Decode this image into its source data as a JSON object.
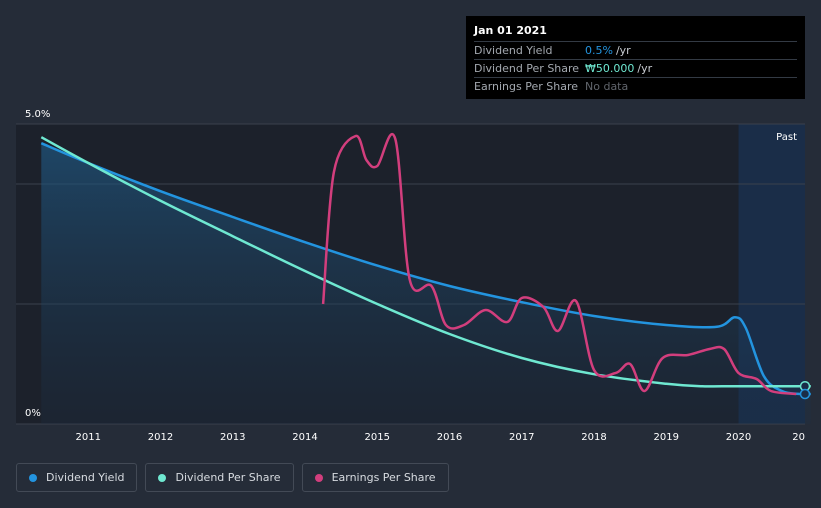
{
  "chart_data": {
    "type": "line",
    "y_axis": {
      "min": 0,
      "max": 5.0,
      "top_label": "5.0%",
      "bottom_label": "0%"
    },
    "x_axis": {
      "start": 2010.35,
      "end": 2021.0,
      "tick_labels": [
        "2011",
        "2012",
        "2013",
        "2014",
        "2015",
        "2016",
        "2017",
        "2018",
        "2019",
        "2020",
        "20"
      ]
    },
    "past_label": "Past",
    "past_start": 2020.0,
    "colors": {
      "dividend_yield": "#2394df",
      "dividend_per_share": "#6fe8d1",
      "eps": "#d23e7d",
      "eps_low": "#ed5a5a",
      "background": "#252c38",
      "plot_past": "#1a2d48"
    },
    "series": [
      {
        "name": "Dividend Yield",
        "color": "#2394df",
        "points": [
          [
            2010.35,
            4.68
          ],
          [
            2011,
            4.35
          ],
          [
            2012,
            3.88
          ],
          [
            2013,
            3.45
          ],
          [
            2014,
            3.03
          ],
          [
            2015,
            2.64
          ],
          [
            2016,
            2.3
          ],
          [
            2017,
            2.03
          ],
          [
            2018,
            1.8
          ],
          [
            2019,
            1.65
          ],
          [
            2019.7,
            1.62
          ],
          [
            2019.95,
            1.78
          ],
          [
            2020.1,
            1.6
          ],
          [
            2020.35,
            0.8
          ],
          [
            2020.6,
            0.55
          ],
          [
            2020.85,
            0.5
          ],
          [
            2021,
            0.5
          ]
        ]
      },
      {
        "name": "Dividend Per Share",
        "color": "#6fe8d1",
        "points": [
          [
            2010.35,
            4.78
          ],
          [
            2011,
            4.35
          ],
          [
            2012,
            3.72
          ],
          [
            2013,
            3.13
          ],
          [
            2014,
            2.55
          ],
          [
            2015,
            2.0
          ],
          [
            2016,
            1.5
          ],
          [
            2017,
            1.1
          ],
          [
            2018,
            0.83
          ],
          [
            2019,
            0.67
          ],
          [
            2019.5,
            0.63
          ],
          [
            2020,
            0.63
          ],
          [
            2021,
            0.63
          ]
        ]
      },
      {
        "name": "Earnings Per Share",
        "color": "#d23e7d",
        "points": [
          [
            2014.25,
            2.0
          ],
          [
            2014.4,
            4.2
          ],
          [
            2014.7,
            4.8
          ],
          [
            2014.85,
            4.4
          ],
          [
            2015.0,
            4.3
          ],
          [
            2015.25,
            4.75
          ],
          [
            2015.45,
            2.4
          ],
          [
            2015.75,
            2.3
          ],
          [
            2015.95,
            1.65
          ],
          [
            2016.2,
            1.65
          ],
          [
            2016.5,
            1.9
          ],
          [
            2016.8,
            1.7
          ],
          [
            2017.0,
            2.1
          ],
          [
            2017.3,
            1.95
          ],
          [
            2017.5,
            1.55
          ],
          [
            2017.75,
            2.05
          ],
          [
            2018.0,
            0.9
          ],
          [
            2018.3,
            0.85
          ],
          [
            2018.5,
            1.0
          ],
          [
            2018.7,
            0.55
          ],
          [
            2018.95,
            1.1
          ],
          [
            2019.3,
            1.15
          ],
          [
            2019.6,
            1.25
          ],
          [
            2019.8,
            1.25
          ],
          [
            2020.0,
            0.85
          ],
          [
            2020.25,
            0.75
          ],
          [
            2020.45,
            0.55
          ],
          [
            2020.8,
            0.5
          ]
        ]
      }
    ]
  },
  "tooltip": {
    "date": "Jan 01 2021",
    "rows": [
      {
        "label": "Dividend Yield",
        "value": "0.5%",
        "unit": "/yr",
        "value_color": "#2394df"
      },
      {
        "label": "Dividend Per Share",
        "value": "₩50.000",
        "unit": "/yr",
        "value_color": "#6fe8d1"
      },
      {
        "label": "Earnings Per Share",
        "value": "No data",
        "unit": "",
        "value_color": "#61656c"
      }
    ]
  },
  "legend": [
    {
      "label": "Dividend Yield",
      "color": "#2394df"
    },
    {
      "label": "Dividend Per Share",
      "color": "#6fe8d1"
    },
    {
      "label": "Earnings Per Share",
      "color": "#d23e7d"
    }
  ]
}
